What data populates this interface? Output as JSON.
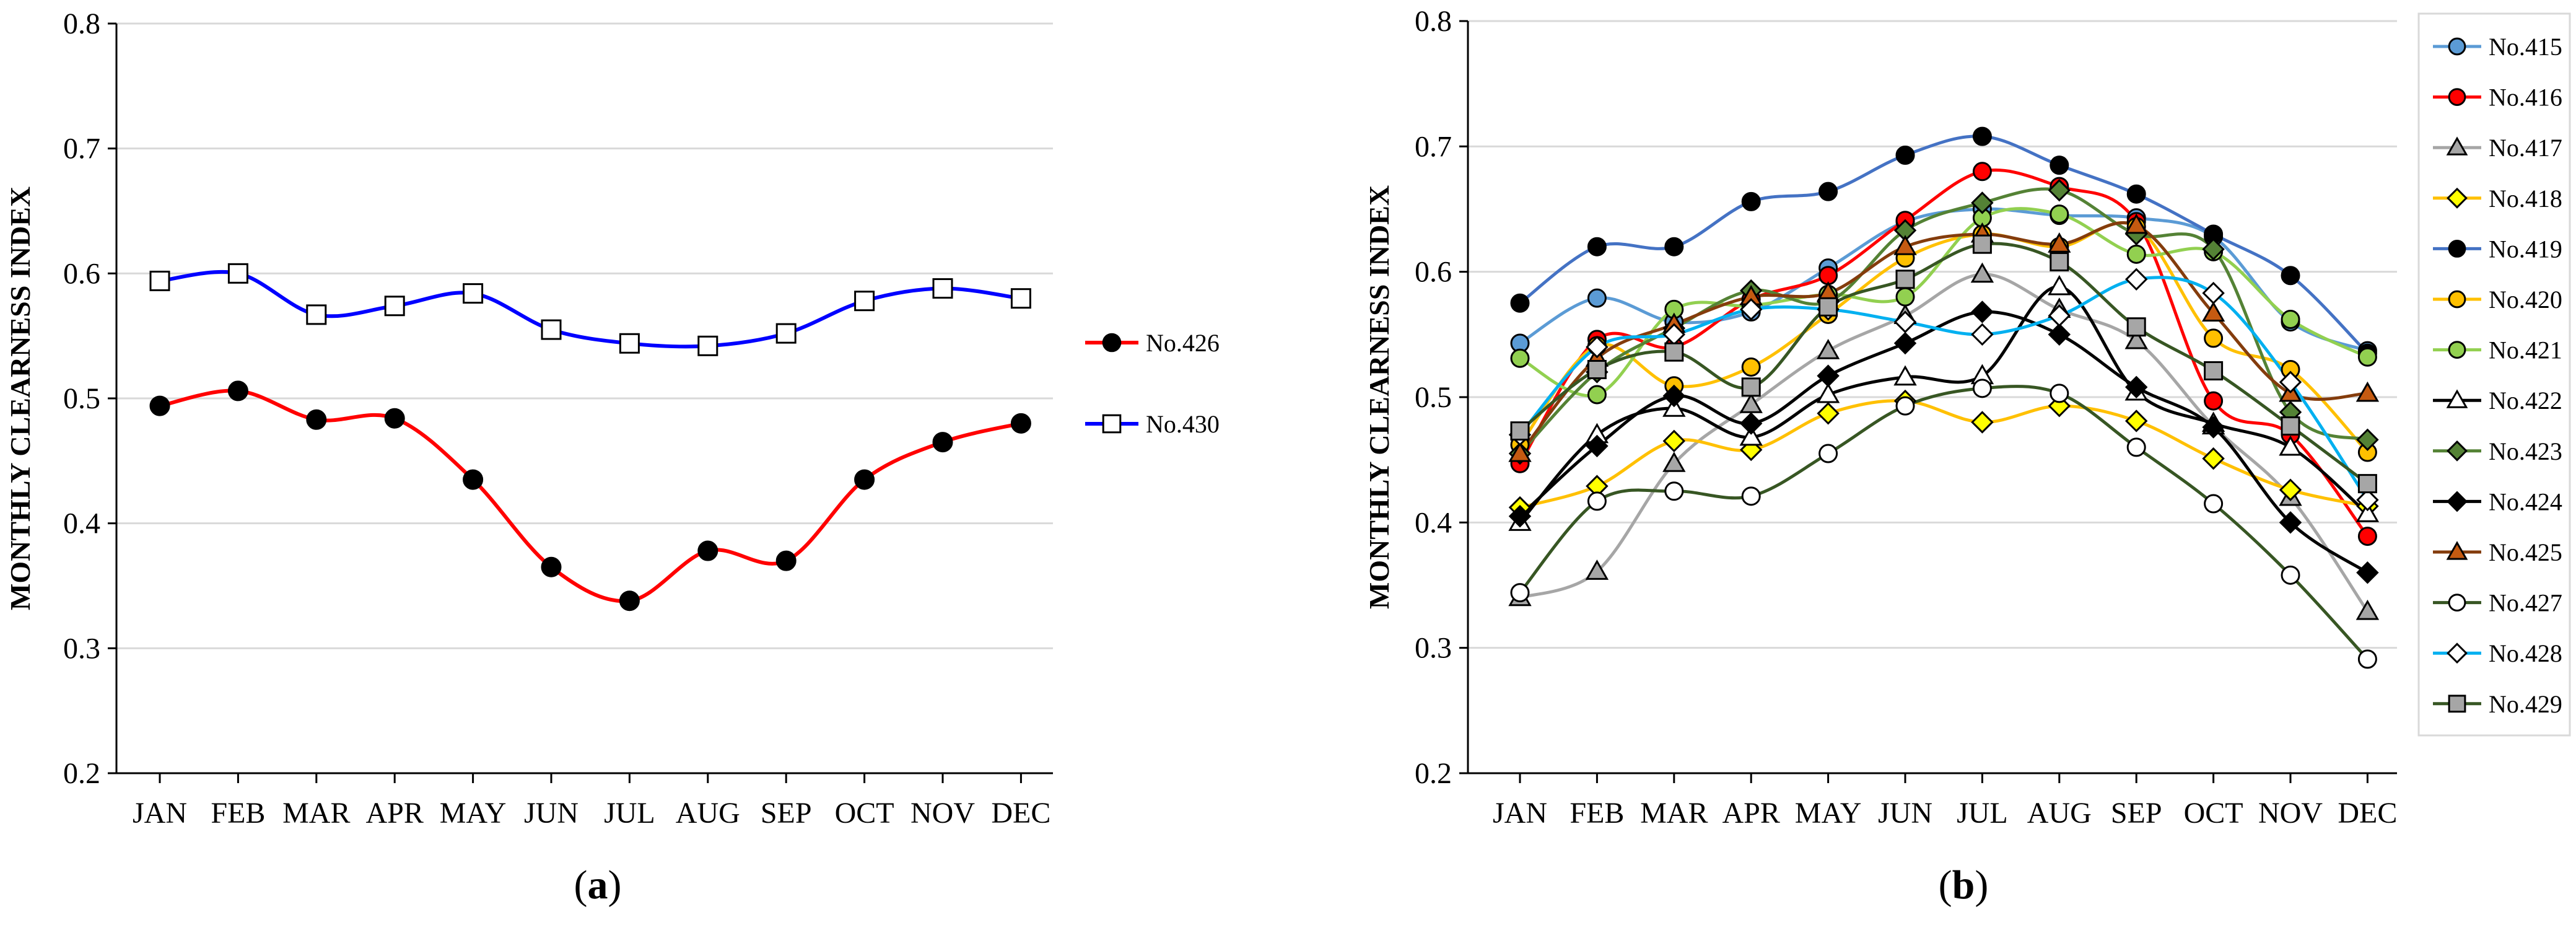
{
  "chart_data": [
    {
      "type": "line",
      "panel": "a",
      "panel_label": "(a)",
      "panel_label_letter": "a",
      "title": "",
      "xlabel": "",
      "ylabel": "MONTHLY CLEARNESS INDEX",
      "ylim": [
        0.2,
        0.8
      ],
      "yticks": [
        "0.2",
        "0.3",
        "0.4",
        "0.5",
        "0.6",
        "0.7",
        "0.8"
      ],
      "grid": true,
      "legend_position": "right",
      "categories": [
        "JAN",
        "FEB",
        "MAR",
        "APR",
        "MAY",
        "JUN",
        "JUL",
        "AUG",
        "SEP",
        "OCT",
        "NOV",
        "DEC"
      ],
      "series": [
        {
          "name": "No.426",
          "color": "#ff0000",
          "marker": "circle",
          "marker_fill": "#000000",
          "values": [
            0.494,
            0.506,
            0.483,
            0.484,
            0.435,
            0.365,
            0.338,
            0.378,
            0.37,
            0.435,
            0.465,
            0.48
          ]
        },
        {
          "name": "No.430",
          "color": "#0000ff",
          "marker": "square",
          "marker_fill": "#ffffff",
          "values": [
            0.594,
            0.6,
            0.567,
            0.574,
            0.584,
            0.555,
            0.544,
            0.542,
            0.552,
            0.578,
            0.588,
            0.58
          ]
        }
      ]
    },
    {
      "type": "line",
      "panel": "b",
      "panel_label": "(b)",
      "panel_label_letter": "b",
      "title": "",
      "xlabel": "",
      "ylabel": "MONTHLY CLEARNESS INDEX",
      "ylim": [
        0.2,
        0.8
      ],
      "yticks": [
        "0.2",
        "0.3",
        "0.4",
        "0.5",
        "0.6",
        "0.7",
        "0.8"
      ],
      "grid": true,
      "legend_position": "right",
      "categories": [
        "JAN",
        "FEB",
        "MAR",
        "APR",
        "MAY",
        "JUN",
        "JUL",
        "AUG",
        "SEP",
        "OCT",
        "NOV",
        "DEC"
      ],
      "series": [
        {
          "name": "No.415",
          "color": "#5b9bd5",
          "marker": "circle",
          "marker_fill": "#5b9bd5",
          "values": [
            0.543,
            0.579,
            0.56,
            0.568,
            0.603,
            0.64,
            0.65,
            0.645,
            0.643,
            0.628,
            0.56,
            0.537
          ]
        },
        {
          "name": "No.416",
          "color": "#ff0000",
          "marker": "circle",
          "marker_fill": "#ff0000",
          "values": [
            0.447,
            0.546,
            0.54,
            0.578,
            0.597,
            0.641,
            0.68,
            0.668,
            0.64,
            0.497,
            0.47,
            0.389
          ]
        },
        {
          "name": "No.417",
          "color": "#a6a6a6",
          "marker": "triangle",
          "marker_fill": "#a6a6a6",
          "values": [
            0.34,
            0.361,
            0.447,
            0.494,
            0.537,
            0.565,
            0.598,
            0.57,
            0.545,
            0.477,
            0.42,
            0.329
          ]
        },
        {
          "name": "No.418",
          "color": "#ffc000",
          "marker": "diamond",
          "marker_fill": "#ffff00",
          "values": [
            0.412,
            0.429,
            0.465,
            0.458,
            0.487,
            0.497,
            0.48,
            0.493,
            0.481,
            0.451,
            0.426,
            0.413
          ]
        },
        {
          "name": "No.419",
          "color": "#4472c4",
          "marker": "circle",
          "marker_fill": "#000000",
          "values": [
            0.575,
            0.62,
            0.62,
            0.656,
            0.664,
            0.693,
            0.708,
            0.685,
            0.662,
            0.63,
            0.597,
            0.535
          ]
        },
        {
          "name": "No.420",
          "color": "#ffc000",
          "marker": "circle",
          "marker_fill": "#ffc000",
          "values": [
            0.462,
            0.541,
            0.509,
            0.524,
            0.566,
            0.611,
            0.63,
            0.62,
            0.636,
            0.547,
            0.522,
            0.456
          ]
        },
        {
          "name": "No.421",
          "color": "#92d050",
          "marker": "circle",
          "marker_fill": "#92d050",
          "values": [
            0.531,
            0.502,
            0.57,
            0.573,
            0.582,
            0.58,
            0.643,
            0.646,
            0.614,
            0.616,
            0.562,
            0.532
          ]
        },
        {
          "name": "No.422",
          "color": "#000000",
          "marker": "triangle",
          "marker_fill": "#ffffff",
          "values": [
            0.4,
            0.47,
            0.491,
            0.468,
            0.502,
            0.516,
            0.517,
            0.588,
            0.504,
            0.479,
            0.46,
            0.407
          ]
        },
        {
          "name": "No.423",
          "color": "#548235",
          "marker": "diamond",
          "marker_fill": "#548235",
          "values": [
            0.455,
            0.52,
            0.555,
            0.585,
            0.576,
            0.633,
            0.655,
            0.665,
            0.63,
            0.618,
            0.488,
            0.466
          ]
        },
        {
          "name": "No.424",
          "color": "#000000",
          "marker": "diamond",
          "marker_fill": "#000000",
          "values": [
            0.405,
            0.461,
            0.501,
            0.479,
            0.517,
            0.543,
            0.568,
            0.55,
            0.508,
            0.476,
            0.4,
            0.36
          ]
        },
        {
          "name": "No.425",
          "color": "#843c0c",
          "marker": "triangle",
          "marker_fill": "#c55a11",
          "values": [
            0.455,
            0.531,
            0.558,
            0.58,
            0.583,
            0.62,
            0.63,
            0.622,
            0.637,
            0.567,
            0.503,
            0.503
          ]
        },
        {
          "name": "No.427",
          "color": "#375623",
          "marker": "circle",
          "marker_fill": "#ffffff",
          "values": [
            0.344,
            0.417,
            0.425,
            0.421,
            0.455,
            0.493,
            0.507,
            0.503,
            0.46,
            0.415,
            0.358,
            0.291
          ]
        },
        {
          "name": "No.428",
          "color": "#00b0f0",
          "marker": "diamond",
          "marker_fill": "#ffffff",
          "values": [
            0.47,
            0.54,
            0.55,
            0.57,
            0.57,
            0.56,
            0.55,
            0.565,
            0.594,
            0.583,
            0.512,
            0.418
          ]
        },
        {
          "name": "No.429",
          "color": "#375623",
          "marker": "square",
          "marker_fill": "#a6a6a6",
          "values": [
            0.473,
            0.522,
            0.536,
            0.508,
            0.572,
            0.594,
            0.622,
            0.608,
            0.556,
            0.521,
            0.477,
            0.431
          ]
        }
      ]
    }
  ]
}
